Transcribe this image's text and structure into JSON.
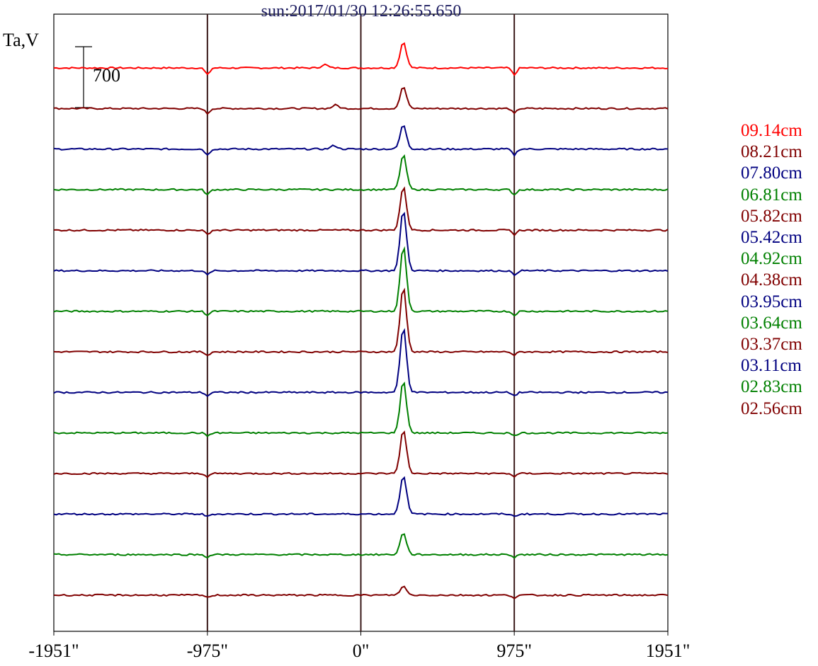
{
  "chart_data": {
    "type": "line",
    "title": "sun:2017/01/30 12:26:55.650",
    "ylabel": "Ta,V",
    "scale_bar_value": "700",
    "xlim": [
      -1951,
      1951
    ],
    "x_ticks": [
      {
        "value": -1951,
        "label": "-1951\""
      },
      {
        "value": -975,
        "label": "-975\""
      },
      {
        "value": 0,
        "label": "0\""
      },
      {
        "value": 975,
        "label": "975\""
      },
      {
        "value": 1951,
        "label": "1951\""
      }
    ],
    "vertical_lines": [
      -975,
      0,
      975
    ],
    "series": [
      {
        "name": "09.14cm",
        "color": "#ff0000",
        "peaks": [
          [
            270,
            300
          ],
          [
            -230,
            40
          ]
        ],
        "limb_dip": 80
      },
      {
        "name": "08.21cm",
        "color": "#800000",
        "peaks": [
          [
            270,
            250
          ],
          [
            -160,
            40
          ]
        ],
        "limb_dip": 60
      },
      {
        "name": "07.80cm",
        "color": "#000080",
        "peaks": [
          [
            270,
            280
          ],
          [
            -170,
            40
          ]
        ],
        "limb_dip": 70
      },
      {
        "name": "06.81cm",
        "color": "#008000",
        "peaks": [
          [
            270,
            400
          ]
        ],
        "limb_dip": 60
      },
      {
        "name": "05.82cm",
        "color": "#800000",
        "peaks": [
          [
            270,
            500
          ]
        ],
        "limb_dip": 50
      },
      {
        "name": "05.42cm",
        "color": "#000080",
        "peaks": [
          [
            270,
            700
          ]
        ],
        "limb_dip": 50
      },
      {
        "name": "04.92cm",
        "color": "#008000",
        "peaks": [
          [
            270,
            750
          ]
        ],
        "limb_dip": 45
      },
      {
        "name": "04.38cm",
        "color": "#800000",
        "peaks": [
          [
            270,
            750
          ]
        ],
        "limb_dip": 40
      },
      {
        "name": "03.95cm",
        "color": "#000080",
        "peaks": [
          [
            270,
            750
          ]
        ],
        "limb_dip": 40
      },
      {
        "name": "03.64cm",
        "color": "#008000",
        "peaks": [
          [
            270,
            600
          ]
        ],
        "limb_dip": 35
      },
      {
        "name": "03.37cm",
        "color": "#800000",
        "peaks": [
          [
            270,
            500
          ]
        ],
        "limb_dip": 35
      },
      {
        "name": "03.11cm",
        "color": "#000080",
        "peaks": [
          [
            270,
            450
          ]
        ],
        "limb_dip": 30
      },
      {
        "name": "02.83cm",
        "color": "#008000",
        "peaks": [
          [
            270,
            250
          ]
        ],
        "limb_dip": 30
      },
      {
        "name": "02.56cm",
        "color": "#800000",
        "peaks": [
          [
            270,
            100
          ]
        ],
        "limb_dip": 30
      }
    ]
  }
}
